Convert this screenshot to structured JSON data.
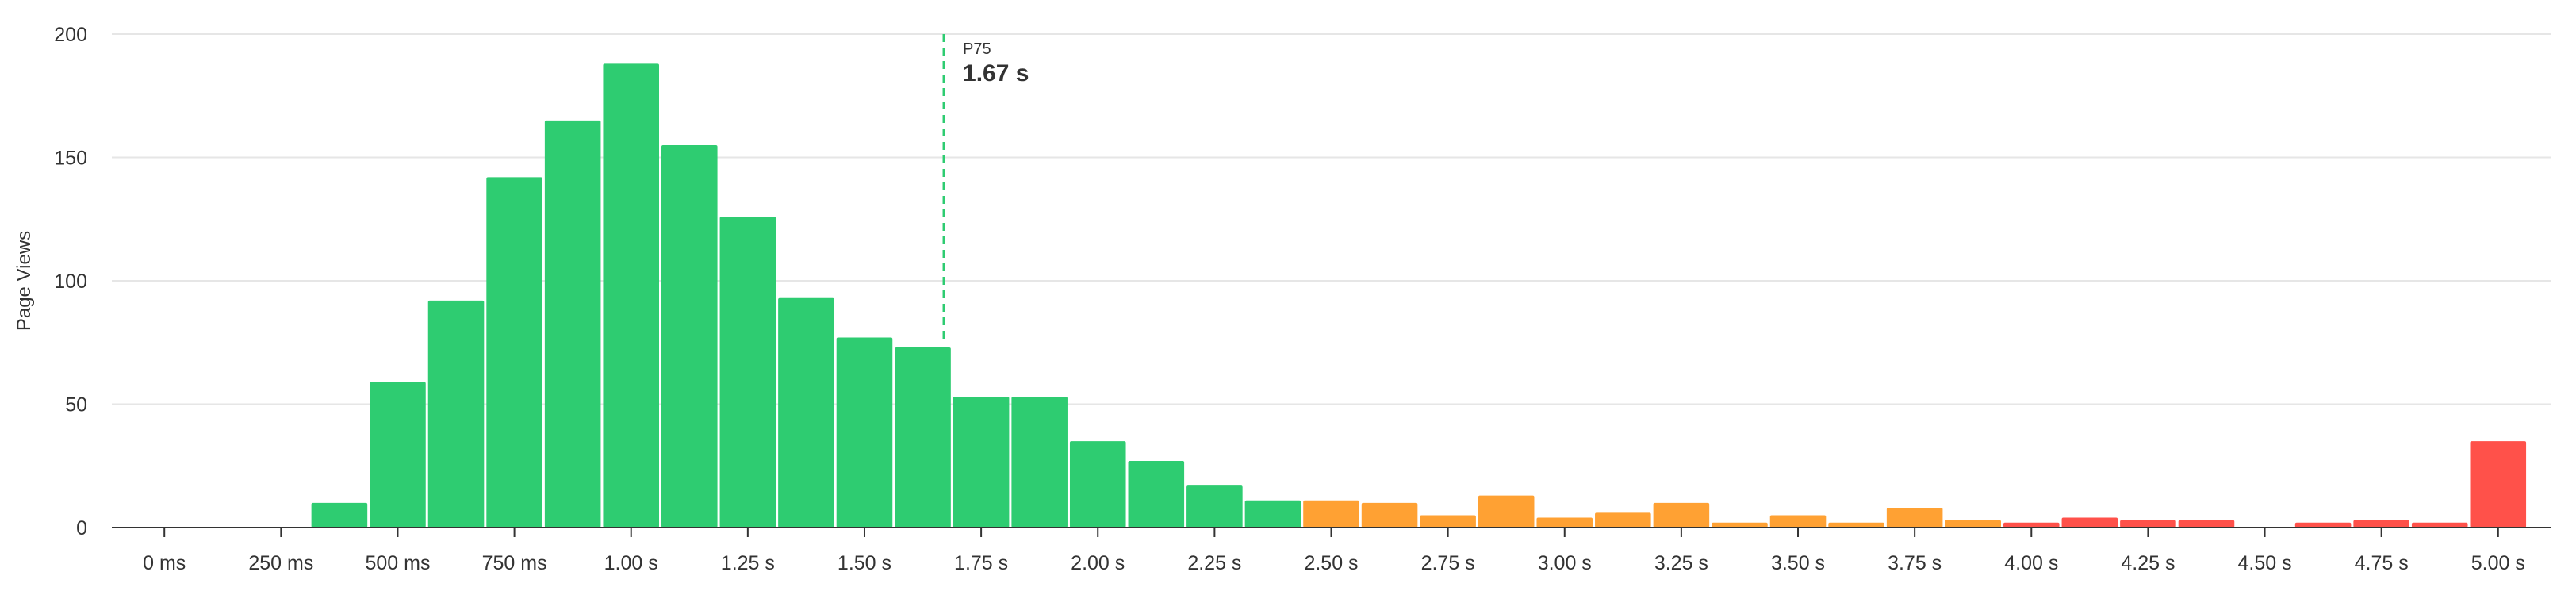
{
  "chart_data": {
    "type": "histogram",
    "y_label": "Page Views",
    "bins": [
      312.5,
      437.5,
      562.5,
      687.5,
      812.5,
      937.5,
      1062.5,
      1187.5,
      1312.5,
      1437.5,
      1562.5,
      1687.5,
      1812.5,
      1937.5,
      2062.5,
      2187.5,
      2312.5,
      2437.5,
      2562.5,
      2687.5,
      2812.5,
      2937.5,
      3062.5,
      3187.5,
      3312.5,
      3437.5,
      3562.5,
      3687.5,
      3812.5,
      3937.5,
      4062.5,
      4187.5,
      4312.5,
      4437.5,
      4562.5,
      4687.5,
      4812.5,
      4937.5,
      5062.5
    ],
    "values": [
      10,
      59,
      92,
      142,
      165,
      188,
      155,
      126,
      93,
      77,
      73,
      53,
      53,
      35,
      27,
      17,
      11,
      11,
      10,
      5,
      13,
      4,
      6,
      10,
      2,
      5,
      2,
      8,
      3,
      2,
      4,
      3,
      3,
      0,
      2,
      3,
      2,
      35
    ],
    "colors": [
      "#2ecc71",
      "#2ecc71",
      "#2ecc71",
      "#2ecc71",
      "#2ecc71",
      "#2ecc71",
      "#2ecc71",
      "#2ecc71",
      "#2ecc71",
      "#2ecc71",
      "#2ecc71",
      "#2ecc71",
      "#2ecc71",
      "#2ecc71",
      "#2ecc71",
      "#2ecc71",
      "#2ecc71",
      "#ffa133",
      "#ffa133",
      "#ffa133",
      "#ffa133",
      "#ffa133",
      "#ffa133",
      "#ffa133",
      "#ffa133",
      "#ffa133",
      "#ffa133",
      "#ffa133",
      "#ffa133",
      "#ff514a",
      "#ff514a",
      "#ff514a",
      "#ff514a",
      "#ff514a",
      "#ff514a",
      "#ff514a",
      "#ff514a",
      "#ff514a"
    ],
    "xlim": [
      -112.5,
      5112.5
    ],
    "ylim": [
      0,
      200
    ],
    "xticks": [
      {
        "value": 0,
        "label": "0 ms"
      },
      {
        "value": 250,
        "label": "250 ms"
      },
      {
        "value": 500,
        "label": "500 ms"
      },
      {
        "value": 750,
        "label": "750 ms"
      },
      {
        "value": 1000,
        "label": "1.00 s"
      },
      {
        "value": 1250,
        "label": "1.25 s"
      },
      {
        "value": 1500,
        "label": "1.50 s"
      },
      {
        "value": 1750,
        "label": "1.75 s"
      },
      {
        "value": 2000,
        "label": "2.00 s"
      },
      {
        "value": 2250,
        "label": "2.25 s"
      },
      {
        "value": 2500,
        "label": "2.50 s"
      },
      {
        "value": 2750,
        "label": "2.75 s"
      },
      {
        "value": 3000,
        "label": "3.00 s"
      },
      {
        "value": 3250,
        "label": "3.25 s"
      },
      {
        "value": 3500,
        "label": "3.50 s"
      },
      {
        "value": 3750,
        "label": "3.75 s"
      },
      {
        "value": 4000,
        "label": "4.00 s"
      },
      {
        "value": 4250,
        "label": "4.25 s"
      },
      {
        "value": 4500,
        "label": "4.50 s"
      },
      {
        "value": 4750,
        "label": "4.75 s"
      },
      {
        "value": 5000,
        "label": "5.00 s"
      }
    ],
    "yticks": [
      0,
      50,
      100,
      150,
      200
    ],
    "grid": true,
    "annotation": {
      "label": "P75",
      "value_label": "1.67 s",
      "x": 1670,
      "color": "#1e8e4e",
      "line_color": "#2ecc71"
    }
  }
}
